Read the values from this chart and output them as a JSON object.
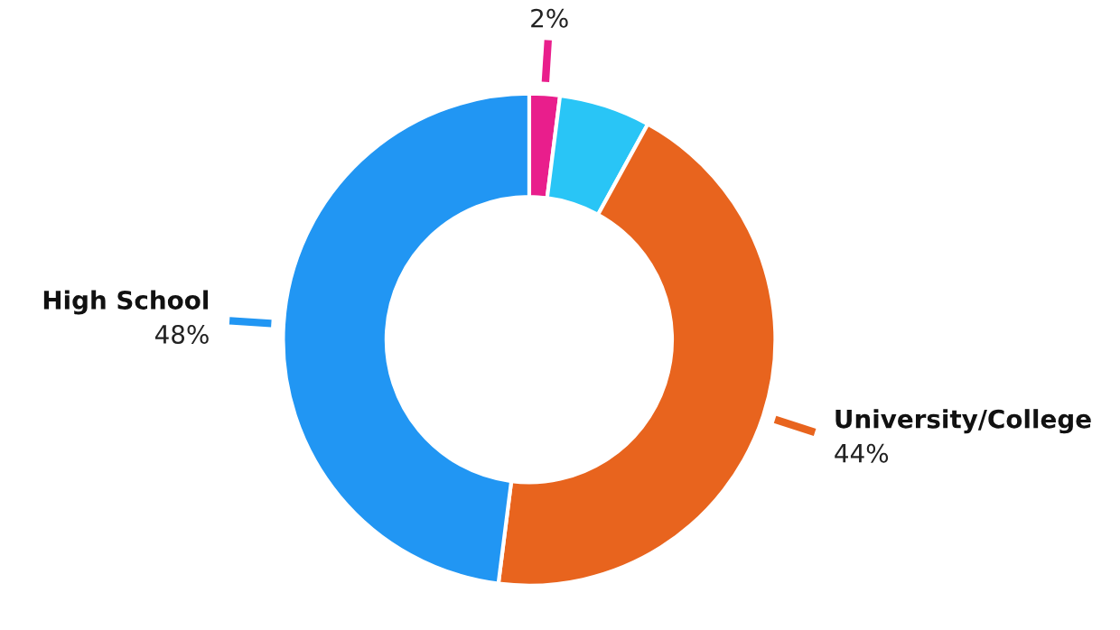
{
  "chart_data": {
    "type": "donut",
    "categories": [
      null,
      null,
      "University/College",
      "High School"
    ],
    "values": [
      2,
      6,
      44,
      48
    ],
    "value_labels": [
      "2%",
      null,
      "44%",
      "48%"
    ],
    "colors": [
      "#e91e8c",
      "#29c5f6",
      "#e8641e",
      "#2196f3"
    ],
    "legend": false
  }
}
